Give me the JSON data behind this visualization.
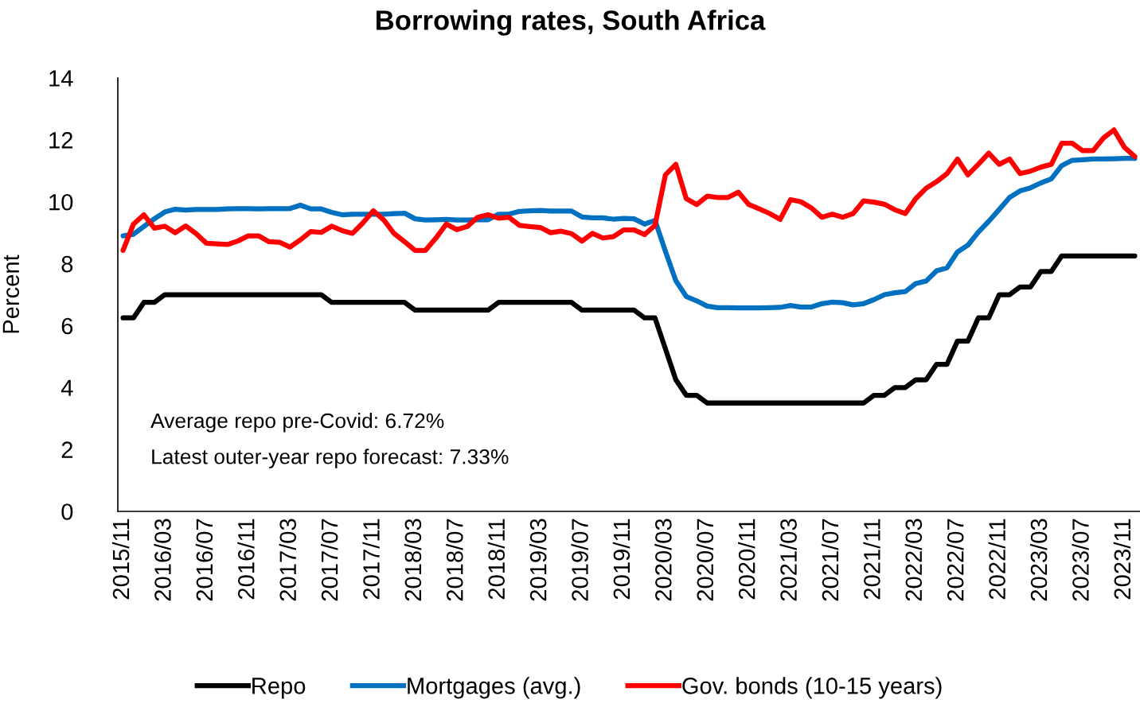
{
  "chart_data": {
    "type": "line",
    "title": "Borrowing rates, South Africa",
    "ylabel": "Percent",
    "categories": [
      "2015/11",
      null,
      null,
      null,
      "2016/03",
      null,
      null,
      null,
      "2016/07",
      null,
      null,
      null,
      "2016/11",
      null,
      null,
      null,
      "2017/03",
      null,
      null,
      null,
      "2017/07",
      null,
      null,
      null,
      "2017/11",
      null,
      null,
      null,
      "2018/03",
      null,
      null,
      null,
      "2018/07",
      null,
      null,
      null,
      "2018/11",
      null,
      null,
      null,
      "2019/03",
      null,
      null,
      null,
      "2019/07",
      null,
      null,
      null,
      "2019/11",
      null,
      null,
      null,
      "2020/03",
      null,
      null,
      null,
      "2020/07",
      null,
      null,
      null,
      "2020/11",
      null,
      null,
      null,
      "2021/03",
      null,
      null,
      null,
      "2021/07",
      null,
      null,
      null,
      "2021/11",
      null,
      null,
      null,
      "2022/03",
      null,
      null,
      null,
      "2022/07",
      null,
      null,
      null,
      "2022/11",
      null,
      null,
      null,
      "2023/03",
      null,
      null,
      null,
      "2023/07",
      null,
      null,
      null,
      "2023/11",
      null
    ],
    "series": [
      {
        "name": "Repo",
        "color": "#000000",
        "values": [
          6.25,
          6.25,
          6.75,
          6.75,
          7.0,
          7.0,
          7.0,
          7.0,
          7.0,
          7.0,
          7.0,
          7.0,
          7.0,
          7.0,
          7.0,
          7.0,
          7.0,
          7.0,
          7.0,
          7.0,
          6.75,
          6.75,
          6.75,
          6.75,
          6.75,
          6.75,
          6.75,
          6.75,
          6.5,
          6.5,
          6.5,
          6.5,
          6.5,
          6.5,
          6.5,
          6.5,
          6.75,
          6.75,
          6.75,
          6.75,
          6.75,
          6.75,
          6.75,
          6.75,
          6.5,
          6.5,
          6.5,
          6.5,
          6.5,
          6.5,
          6.25,
          6.25,
          5.25,
          4.25,
          3.75,
          3.75,
          3.5,
          3.5,
          3.5,
          3.5,
          3.5,
          3.5,
          3.5,
          3.5,
          3.5,
          3.5,
          3.5,
          3.5,
          3.5,
          3.5,
          3.5,
          3.5,
          3.75,
          3.75,
          4.0,
          4.0,
          4.25,
          4.25,
          4.75,
          4.75,
          5.5,
          5.5,
          6.25,
          6.25,
          7.0,
          7.0,
          7.25,
          7.25,
          7.75,
          7.75,
          8.25,
          8.25,
          8.25,
          8.25,
          8.25,
          8.25,
          8.25,
          8.25
        ]
      },
      {
        "name": "Mortgages (avg.)",
        "color": "#0070c0",
        "values": [
          8.9,
          8.95,
          9.2,
          9.45,
          9.67,
          9.76,
          9.73,
          9.75,
          9.75,
          9.75,
          9.77,
          9.78,
          9.78,
          9.77,
          9.78,
          9.78,
          9.78,
          9.89,
          9.77,
          9.77,
          9.66,
          9.58,
          9.6,
          9.6,
          9.6,
          9.6,
          9.62,
          9.63,
          9.45,
          9.41,
          9.42,
          9.43,
          9.41,
          9.41,
          9.42,
          9.42,
          9.6,
          9.6,
          9.69,
          9.71,
          9.72,
          9.7,
          9.7,
          9.7,
          9.51,
          9.48,
          9.48,
          9.44,
          9.46,
          9.45,
          9.28,
          9.4,
          8.4,
          7.45,
          6.94,
          6.8,
          6.63,
          6.58,
          6.58,
          6.57,
          6.57,
          6.57,
          6.58,
          6.59,
          6.65,
          6.6,
          6.6,
          6.71,
          6.76,
          6.74,
          6.67,
          6.71,
          6.84,
          7.0,
          7.06,
          7.1,
          7.36,
          7.44,
          7.77,
          7.87,
          8.38,
          8.6,
          9.02,
          9.37,
          9.75,
          10.14,
          10.35,
          10.45,
          10.61,
          10.74,
          11.17,
          11.34,
          11.36,
          11.38,
          11.38,
          11.39,
          11.4,
          11.4
        ]
      },
      {
        "name": "Gov. bonds (10-15 years)",
        "color": "#ff0000",
        "values": [
          8.43,
          9.28,
          9.58,
          9.15,
          9.21,
          9.0,
          9.22,
          8.97,
          8.66,
          8.64,
          8.62,
          8.73,
          8.9,
          8.9,
          8.71,
          8.69,
          8.54,
          8.77,
          9.04,
          9.01,
          9.21,
          9.07,
          8.98,
          9.32,
          9.71,
          9.41,
          8.97,
          8.71,
          8.43,
          8.43,
          8.83,
          9.28,
          9.1,
          9.2,
          9.5,
          9.58,
          9.47,
          9.5,
          9.24,
          9.2,
          9.17,
          9.0,
          9.05,
          8.97,
          8.73,
          8.98,
          8.83,
          8.87,
          9.09,
          9.09,
          8.94,
          9.24,
          10.87,
          11.21,
          10.1,
          9.91,
          10.18,
          10.14,
          10.14,
          10.31,
          9.91,
          9.77,
          9.62,
          9.43,
          10.07,
          10.0,
          9.8,
          9.5,
          9.6,
          9.5,
          9.62,
          10.03,
          9.99,
          9.92,
          9.74,
          9.62,
          10.1,
          10.44,
          10.65,
          10.91,
          11.38,
          10.87,
          11.21,
          11.57,
          11.21,
          11.38,
          10.91,
          10.99,
          11.12,
          11.21,
          11.89,
          11.89,
          11.65,
          11.65,
          12.06,
          12.32,
          11.76,
          11.46
        ]
      }
    ],
    "ylim": [
      0,
      14
    ],
    "yticks": [
      0,
      2,
      4,
      6,
      8,
      10,
      12,
      14
    ],
    "annotations": [
      "Average repo pre-Covid: 6.72%",
      "Latest outer-year repo forecast: 7.33%"
    ],
    "legend": "bottom",
    "grid": false,
    "marker": "none",
    "line_style": "solid"
  }
}
